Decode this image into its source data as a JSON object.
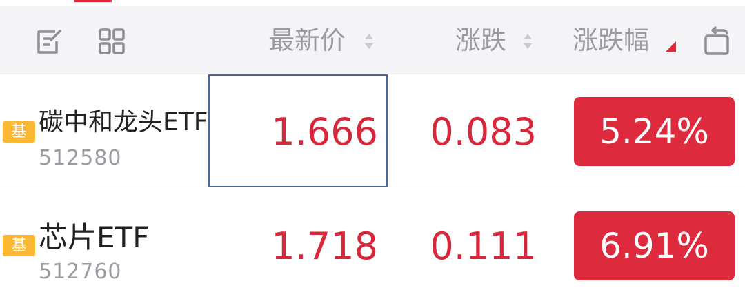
{
  "header": {
    "edit_icon": "edit-icon",
    "grid_icon": "grid-icon",
    "col_price": "最新价",
    "col_change": "涨跌",
    "col_pct": "涨跌幅",
    "rotate_icon": "rotate-icon"
  },
  "colors": {
    "accent_red": "#dd2a3d",
    "badge_orange": "#fbb833",
    "focus_border": "#49699a"
  },
  "rows": [
    {
      "badge": "基",
      "name": "碳中和龙头ETF",
      "code": "512580",
      "price": "1.666",
      "change": "0.083",
      "pct": "5.24%"
    },
    {
      "badge": "基",
      "name": "芯片ETF",
      "code": "512760",
      "price": "1.718",
      "change": "0.111",
      "pct": "6.91%"
    }
  ]
}
